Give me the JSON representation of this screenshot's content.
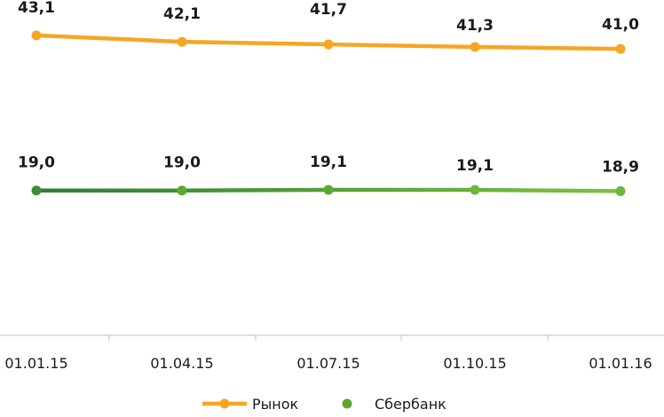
{
  "chart_data": {
    "type": "line",
    "categories": [
      "01.01.15",
      "01.04.15",
      "01.07.15",
      "01.10.15",
      "01.01.16"
    ],
    "series": [
      {
        "name": "Рынок",
        "values": [
          43.1,
          42.1,
          41.7,
          41.3,
          41.0
        ],
        "labels": [
          "43,1",
          "42,1",
          "41,7",
          "41,3",
          "41,0"
        ],
        "color": "#f5a623"
      },
      {
        "name": "Сбербанк",
        "values": [
          19.0,
          19.0,
          19.1,
          19.1,
          18.9
        ],
        "labels": [
          "19,0",
          "19,0",
          "19,1",
          "19,1",
          "18,9"
        ],
        "color": "#5aa830",
        "color_start": "#2e7d32",
        "color_end": "#7cc242"
      }
    ],
    "grid": false,
    "legend": "bottom-center"
  }
}
